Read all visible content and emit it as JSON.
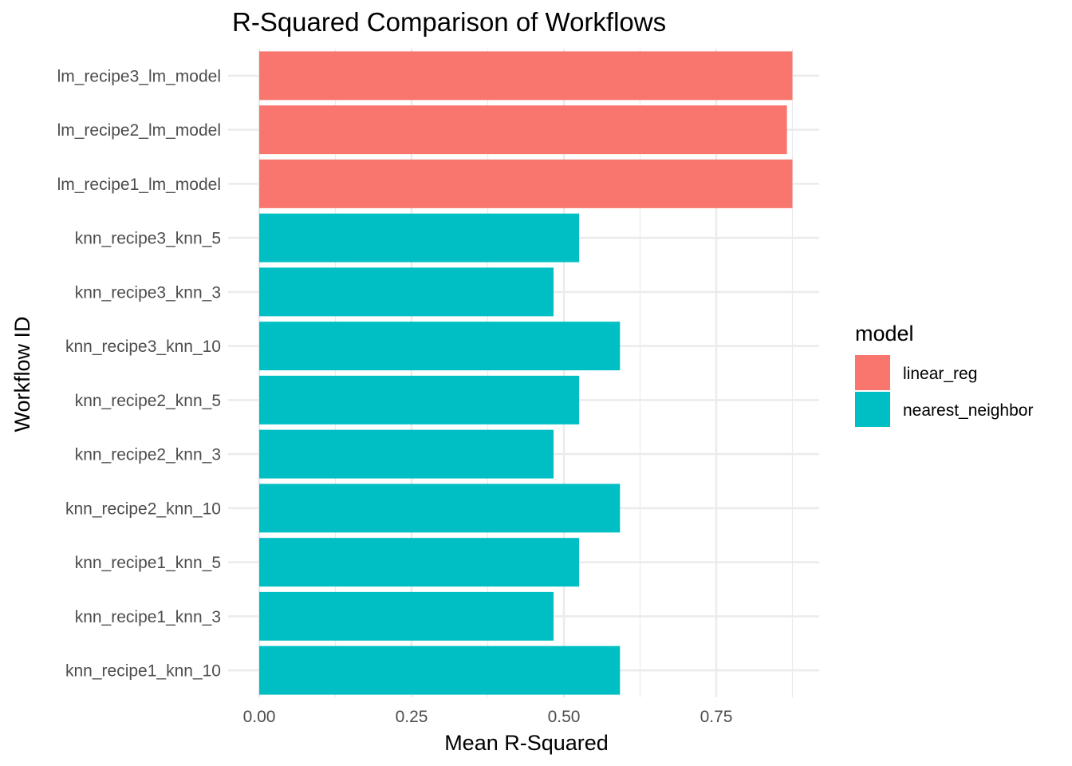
{
  "chart_data": {
    "type": "bar",
    "orientation": "horizontal",
    "title": "R-Squared Comparison of Workflows",
    "xlabel": "Mean R-Squared",
    "ylabel": "Workflow ID",
    "xlim": [
      0,
      0.9
    ],
    "x_ticks": [
      0,
      0.25,
      0.5,
      0.75
    ],
    "x_tick_labels": [
      "0.00",
      "0.25",
      "0.50",
      "0.75"
    ],
    "grid": true,
    "legend": {
      "title": "model",
      "placement": "right",
      "entries": [
        {
          "label": "linear_reg",
          "color": "#F8766D"
        },
        {
          "label": "nearest_neighbor",
          "color": "#00BFC4"
        }
      ]
    },
    "categories": [
      "lm_recipe3_lm_model",
      "lm_recipe2_lm_model",
      "lm_recipe1_lm_model",
      "knn_recipe3_knn_5",
      "knn_recipe3_knn_3",
      "knn_recipe3_knn_10",
      "knn_recipe2_knn_5",
      "knn_recipe2_knn_3",
      "knn_recipe2_knn_10",
      "knn_recipe1_knn_5",
      "knn_recipe1_knn_3",
      "knn_recipe1_knn_10"
    ],
    "values": [
      0.875,
      0.866,
      0.875,
      0.525,
      0.483,
      0.592,
      0.525,
      0.483,
      0.592,
      0.525,
      0.483,
      0.592
    ],
    "groups": [
      "linear_reg",
      "linear_reg",
      "linear_reg",
      "nearest_neighbor",
      "nearest_neighbor",
      "nearest_neighbor",
      "nearest_neighbor",
      "nearest_neighbor",
      "nearest_neighbor",
      "nearest_neighbor",
      "nearest_neighbor",
      "nearest_neighbor"
    ]
  }
}
